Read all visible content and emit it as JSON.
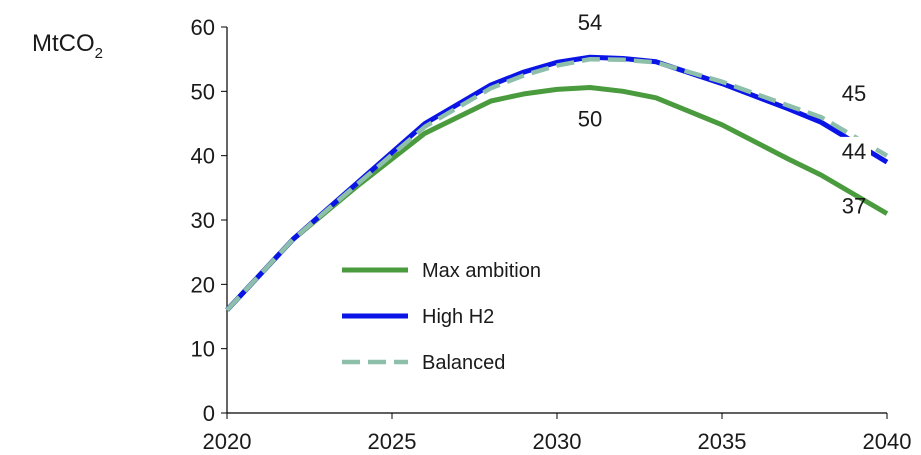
{
  "chart_data": {
    "type": "line",
    "unit": {
      "base": "MtCO",
      "subscript": "2"
    },
    "x": [
      2020,
      2022,
      2024,
      2026,
      2028,
      2029,
      2030,
      2031,
      2032,
      2033,
      2035,
      2037,
      2038,
      2040
    ],
    "series": [
      {
        "name": "Max ambition",
        "color": "#4a9a3e",
        "style": "solid",
        "values": [
          16,
          27,
          35.5,
          43.5,
          48.5,
          49.6,
          50.3,
          50.6,
          50,
          49,
          44.8,
          39.5,
          37,
          31
        ]
      },
      {
        "name": "High H2",
        "color": "#0a14e6",
        "style": "solid",
        "values": [
          16,
          27,
          36,
          45,
          51,
          53,
          54.5,
          55.3,
          55.1,
          54.6,
          51.2,
          47.3,
          45.2,
          39
        ]
      },
      {
        "name": "Balanced",
        "color": "#8dbfaa",
        "style": "dashed",
        "values": [
          16,
          27,
          35.8,
          44.5,
          50.5,
          52.5,
          54,
          55,
          54.9,
          54.5,
          51.5,
          47.8,
          46,
          40
        ]
      }
    ],
    "xlim": [
      2020,
      2040
    ],
    "ylim": [
      0,
      60
    ],
    "xticks": [
      "2020",
      "2025",
      "2030",
      "2035",
      "2040"
    ],
    "xtick_values": [
      2020,
      2025,
      2030,
      2035,
      2040
    ],
    "yticks": [
      "0",
      "10",
      "20",
      "30",
      "40",
      "50",
      "60"
    ],
    "ytick_values": [
      0,
      10,
      20,
      30,
      40,
      50,
      60
    ],
    "annotations": [
      {
        "text": "54",
        "x": 2031,
        "y": 59.5
      },
      {
        "text": "50",
        "x": 2031,
        "y": 44.5
      },
      {
        "text": "45",
        "x": 2039,
        "y": 48.5
      },
      {
        "text": "44",
        "x": 2039,
        "y": 39.5
      },
      {
        "text": "37",
        "x": 2039,
        "y": 31
      }
    ],
    "legend_position": "center",
    "grid": false
  }
}
